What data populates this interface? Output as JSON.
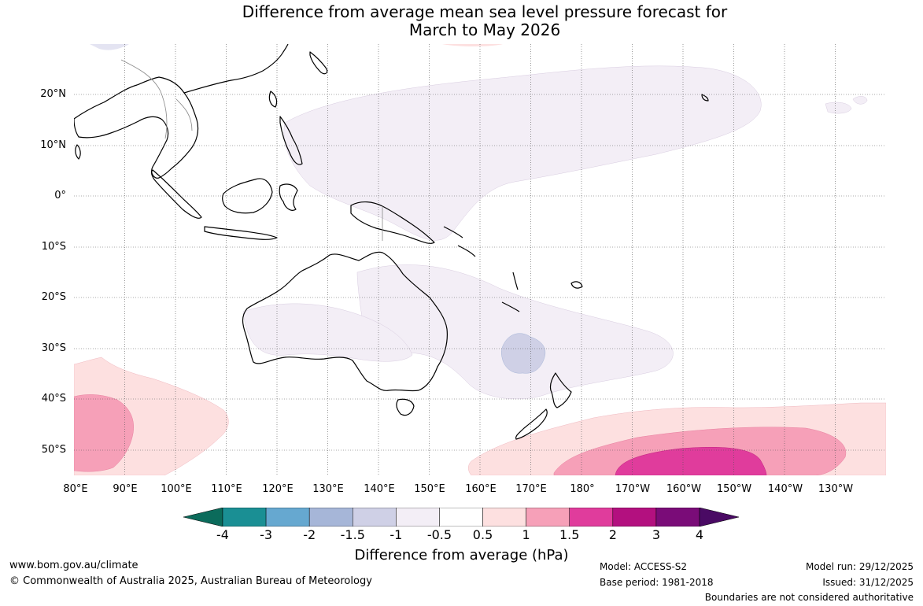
{
  "title": {
    "line1": "Difference from average mean sea level pressure forecast for",
    "line2": "March to May 2026"
  },
  "map": {
    "lat_labels": [
      "20°N",
      "10°N",
      "0°",
      "10°S",
      "20°S",
      "30°S",
      "40°S",
      "50°S"
    ],
    "lon_labels": [
      "80°E",
      "90°E",
      "100°E",
      "110°E",
      "120°E",
      "130°E",
      "140°E",
      "150°E",
      "160°E",
      "170°E",
      "180°",
      "170°W",
      "160°W",
      "150°W",
      "140°W",
      "130°W"
    ],
    "lon_range_deg_east": [
      80,
      240
    ],
    "lat_range_deg": [
      -55,
      30
    ]
  },
  "colorbar": {
    "title": "Difference from average (hPa)",
    "ticks": [
      "-4",
      "-3",
      "-2",
      "-1.5",
      "-1",
      "-0.5",
      "0.5",
      "1",
      "1.5",
      "2",
      "3",
      "4"
    ],
    "colors": [
      "#0b6b5b",
      "#1a8f94",
      "#66a8d0",
      "#a6b6d8",
      "#cfd0e6",
      "#f3eef6",
      "#ffffff",
      "#fde0e0",
      "#f6a0b8",
      "#e03c9c",
      "#b3107f",
      "#7a0c78",
      "#4a0a64"
    ]
  },
  "footer": {
    "website": "www.bom.gov.au/climate",
    "copyright": "© Commonwealth of Australia 2025, Australian Bureau of Meteorology",
    "model": "Model: ACCESS-S2",
    "base_period": "Base period: 1981-2018",
    "model_run": "Model run: 29/12/2025",
    "issued": "Issued: 31/12/2025",
    "disclaimer": "Boundaries are not considered authoritative"
  }
}
